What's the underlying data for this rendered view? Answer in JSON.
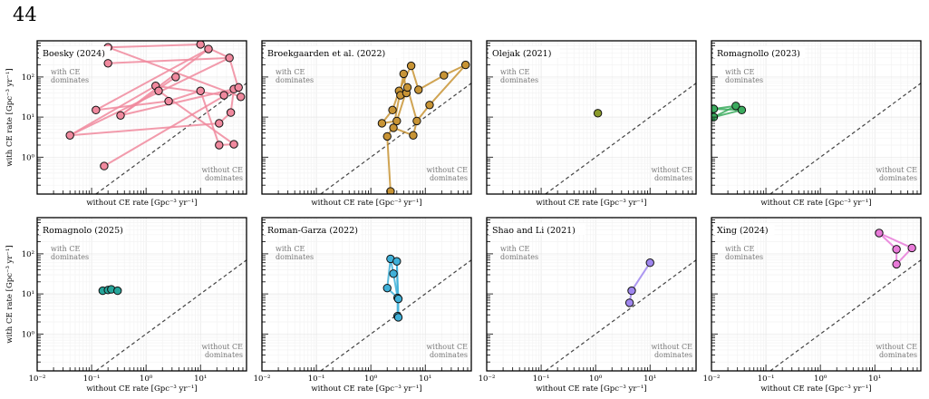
{
  "page": {
    "number": "44"
  },
  "axes_text": {
    "xlabel": "without CE rate [Gpc⁻³ yr⁻¹]",
    "ylabel": "with CE rate [Gpc⁻³ yr⁻¹]",
    "region_upper": [
      "with CE",
      "dominates"
    ],
    "region_lower": [
      "without CE",
      "dominates"
    ]
  },
  "chart_data": [
    {
      "type": "scatter",
      "title": "Boesky (2024)",
      "color": "#f0899e",
      "xlim": [
        0.01,
        70
      ],
      "ylim": [
        0.12,
        800
      ],
      "xscale": "log",
      "yscale": "log",
      "grid": true,
      "reference_line": "y = x",
      "xticks": [],
      "yticks": [
        "10⁰",
        "10¹",
        "10²"
      ],
      "points": [
        [
          0.04,
          3.5
        ],
        [
          0.12,
          15
        ],
        [
          0.17,
          0.6
        ],
        [
          0.2,
          220
        ],
        [
          0.2,
          550
        ],
        [
          0.34,
          11
        ],
        [
          1.5,
          60
        ],
        [
          1.7,
          45
        ],
        [
          2.6,
          25
        ],
        [
          3.5,
          100
        ],
        [
          10,
          650
        ],
        [
          10,
          45
        ],
        [
          14,
          500
        ],
        [
          22,
          7
        ],
        [
          22,
          2
        ],
        [
          27,
          35
        ],
        [
          34,
          300
        ],
        [
          36,
          13
        ],
        [
          41,
          2.1
        ],
        [
          41,
          50
        ],
        [
          50,
          55
        ],
        [
          55,
          32
        ]
      ],
      "segments": [
        [
          [
            0.04,
            3.5
          ],
          [
            1.5,
            60
          ]
        ],
        [
          [
            0.04,
            3.5
          ],
          [
            22,
            7
          ]
        ],
        [
          [
            0.04,
            3.5
          ],
          [
            34,
            300
          ]
        ],
        [
          [
            0.12,
            15
          ],
          [
            14,
            500
          ]
        ],
        [
          [
            0.12,
            15
          ],
          [
            2.6,
            25
          ]
        ],
        [
          [
            0.17,
            0.6
          ],
          [
            50,
            55
          ]
        ],
        [
          [
            0.2,
            550
          ],
          [
            10,
            650
          ]
        ],
        [
          [
            0.2,
            550
          ],
          [
            55,
            32
          ]
        ],
        [
          [
            0.2,
            220
          ],
          [
            34,
            300
          ]
        ],
        [
          [
            0.34,
            11
          ],
          [
            14,
            500
          ]
        ],
        [
          [
            0.34,
            11
          ],
          [
            3.5,
            100
          ]
        ],
        [
          [
            0.34,
            11
          ],
          [
            41,
            50
          ]
        ],
        [
          [
            1.5,
            60
          ],
          [
            27,
            35
          ]
        ],
        [
          [
            1.7,
            45
          ],
          [
            41,
            2.1
          ]
        ],
        [
          [
            2.6,
            25
          ],
          [
            10,
            45
          ]
        ],
        [
          [
            10,
            650
          ],
          [
            34,
            300
          ]
        ],
        [
          [
            10,
            45
          ],
          [
            22,
            2
          ]
        ],
        [
          [
            22,
            7
          ],
          [
            36,
            13
          ]
        ],
        [
          [
            22,
            2
          ],
          [
            41,
            2.1
          ]
        ],
        [
          [
            27,
            35
          ],
          [
            50,
            55
          ]
        ],
        [
          [
            34,
            300
          ],
          [
            55,
            32
          ]
        ],
        [
          [
            36,
            13
          ],
          [
            41,
            50
          ]
        ]
      ]
    },
    {
      "type": "scatter",
      "title": "Broekgaarden et al. (2022)",
      "color": "#c89435",
      "xlim": [
        0.01,
        70
      ],
      "ylim": [
        0.12,
        800
      ],
      "xscale": "log",
      "yscale": "log",
      "grid": true,
      "reference_line": "y = x",
      "xticks": [],
      "yticks": [],
      "points": [
        [
          1.6,
          7
        ],
        [
          2,
          3.3
        ],
        [
          2.3,
          0.14
        ],
        [
          2.5,
          15
        ],
        [
          2.6,
          5.4
        ],
        [
          3,
          8
        ],
        [
          3.3,
          45
        ],
        [
          3.5,
          35
        ],
        [
          4,
          120
        ],
        [
          4.5,
          40
        ],
        [
          4.7,
          55
        ],
        [
          5.5,
          190
        ],
        [
          6,
          3.5
        ],
        [
          7,
          8
        ],
        [
          7.5,
          48
        ],
        [
          12,
          20
        ],
        [
          22,
          110
        ],
        [
          55,
          200
        ]
      ],
      "segments": [
        [
          [
            1.6,
            7
          ],
          [
            3,
            8
          ]
        ],
        [
          [
            1.6,
            7
          ],
          [
            2.5,
            15
          ]
        ],
        [
          [
            2,
            3.3
          ],
          [
            3,
            8
          ]
        ],
        [
          [
            2,
            3.3
          ],
          [
            2.3,
            0.14
          ]
        ],
        [
          [
            2.5,
            15
          ],
          [
            3.3,
            45
          ]
        ],
        [
          [
            2.6,
            5.4
          ],
          [
            4,
            120
          ]
        ],
        [
          [
            2.6,
            5.4
          ],
          [
            6,
            3.5
          ]
        ],
        [
          [
            3,
            8
          ],
          [
            4.7,
            55
          ]
        ],
        [
          [
            3.3,
            45
          ],
          [
            5.5,
            190
          ]
        ],
        [
          [
            3.5,
            35
          ],
          [
            4.5,
            40
          ]
        ],
        [
          [
            4,
            120
          ],
          [
            4.5,
            40
          ]
        ],
        [
          [
            4.7,
            55
          ],
          [
            7,
            8
          ]
        ],
        [
          [
            5.5,
            190
          ],
          [
            7.5,
            48
          ]
        ],
        [
          [
            6,
            3.5
          ],
          [
            7,
            8
          ]
        ],
        [
          [
            7,
            8
          ],
          [
            12,
            20
          ]
        ],
        [
          [
            7.5,
            48
          ],
          [
            22,
            110
          ]
        ],
        [
          [
            12,
            20
          ],
          [
            55,
            200
          ]
        ],
        [
          [
            22,
            110
          ],
          [
            55,
            200
          ]
        ]
      ]
    },
    {
      "type": "scatter",
      "title": "Olejak (2021)",
      "color": "#8a9a2a",
      "xlim": [
        0.01,
        70
      ],
      "ylim": [
        0.12,
        800
      ],
      "xscale": "log",
      "yscale": "log",
      "grid": true,
      "reference_line": "y = x",
      "xticks": [],
      "yticks": [],
      "points": [
        [
          1.1,
          12.5
        ]
      ],
      "segments": []
    },
    {
      "type": "scatter",
      "title": "Romagnollo (2023)",
      "color": "#3bab5e",
      "xlim": [
        0.01,
        70
      ],
      "ylim": [
        0.12,
        800
      ],
      "xscale": "log",
      "yscale": "log",
      "grid": true,
      "reference_line": "y = x",
      "xticks": [],
      "yticks": [],
      "points": [
        [
          0.011,
          16
        ],
        [
          0.011,
          10
        ],
        [
          0.028,
          19
        ],
        [
          0.036,
          15
        ]
      ],
      "segments": [
        [
          [
            0.011,
            16
          ],
          [
            0.028,
            19
          ]
        ],
        [
          [
            0.011,
            16
          ],
          [
            0.036,
            15
          ]
        ],
        [
          [
            0.011,
            10
          ],
          [
            0.028,
            19
          ]
        ],
        [
          [
            0.011,
            10
          ],
          [
            0.036,
            15
          ]
        ],
        [
          [
            0.028,
            19
          ],
          [
            0.036,
            15
          ]
        ]
      ]
    },
    {
      "type": "scatter",
      "title": "Romagnolo (2025)",
      "color": "#26a59a",
      "xlim": [
        0.01,
        70
      ],
      "ylim": [
        0.12,
        800
      ],
      "xscale": "log",
      "yscale": "log",
      "grid": true,
      "reference_line": "y = x",
      "xticks": [
        "10⁻²",
        "10⁻¹",
        "10⁰",
        "10¹"
      ],
      "yticks": [
        "10⁰",
        "10¹",
        "10²"
      ],
      "points": [
        [
          0.16,
          12
        ],
        [
          0.2,
          12.5
        ],
        [
          0.23,
          13
        ],
        [
          0.3,
          12
        ]
      ],
      "segments": [
        [
          [
            0.16,
            12
          ],
          [
            0.3,
            12
          ]
        ],
        [
          [
            0.2,
            12.5
          ],
          [
            0.23,
            13
          ]
        ]
      ]
    },
    {
      "type": "scatter",
      "title": "Roman-Garza (2022)",
      "color": "#3fb0d8",
      "xlim": [
        0.01,
        70
      ],
      "ylim": [
        0.12,
        800
      ],
      "xscale": "log",
      "yscale": "log",
      "grid": true,
      "reference_line": "y = x",
      "xticks": [
        "10⁻²",
        "10⁻¹",
        "10⁰",
        "10¹"
      ],
      "yticks": [],
      "points": [
        [
          2,
          14
        ],
        [
          2.3,
          75
        ],
        [
          2.6,
          32
        ],
        [
          3,
          65
        ],
        [
          3.1,
          8
        ],
        [
          3.2,
          7.5
        ],
        [
          3.1,
          2.8
        ],
        [
          3.2,
          2.6
        ]
      ],
      "segments": [
        [
          [
            2,
            14
          ],
          [
            2.3,
            75
          ]
        ],
        [
          [
            2.3,
            75
          ],
          [
            2.6,
            32
          ]
        ],
        [
          [
            2.6,
            32
          ],
          [
            3.1,
            8
          ]
        ],
        [
          [
            2,
            14
          ],
          [
            3.1,
            8
          ]
        ],
        [
          [
            3,
            65
          ],
          [
            3.1,
            8
          ]
        ],
        [
          [
            3,
            65
          ],
          [
            3.2,
            7.5
          ]
        ],
        [
          [
            3.1,
            8
          ],
          [
            3.1,
            2.8
          ]
        ],
        [
          [
            3.2,
            7.5
          ],
          [
            3.2,
            2.6
          ]
        ]
      ]
    },
    {
      "type": "scatter",
      "title": "Shao and Li (2021)",
      "color": "#9f86ee",
      "xlim": [
        0.01,
        70
      ],
      "ylim": [
        0.12,
        800
      ],
      "xscale": "log",
      "yscale": "log",
      "grid": true,
      "reference_line": "y = x",
      "xticks": [
        "10⁻²",
        "10⁻¹",
        "10⁰",
        "10¹"
      ],
      "yticks": [],
      "points": [
        [
          4.2,
          6
        ],
        [
          4.6,
          12
        ],
        [
          10,
          60
        ]
      ],
      "segments": [
        [
          [
            4.2,
            6
          ],
          [
            4.6,
            12
          ]
        ],
        [
          [
            4.6,
            12
          ],
          [
            10,
            60
          ]
        ]
      ]
    },
    {
      "type": "scatter",
      "title": "Xing (2024)",
      "color": "#e87ad8",
      "xlim": [
        0.01,
        70
      ],
      "ylim": [
        0.12,
        800
      ],
      "xscale": "log",
      "yscale": "log",
      "grid": true,
      "reference_line": "y = x",
      "xticks": [
        "10⁻²",
        "10⁻¹",
        "10⁰",
        "10¹"
      ],
      "yticks": [],
      "points": [
        [
          12,
          330
        ],
        [
          25,
          130
        ],
        [
          25,
          55
        ],
        [
          48,
          140
        ]
      ],
      "segments": [
        [
          [
            12,
            330
          ],
          [
            25,
            130
          ]
        ],
        [
          [
            12,
            330
          ],
          [
            48,
            140
          ]
        ],
        [
          [
            25,
            130
          ],
          [
            25,
            55
          ]
        ],
        [
          [
            25,
            55
          ],
          [
            48,
            140
          ]
        ]
      ]
    }
  ]
}
